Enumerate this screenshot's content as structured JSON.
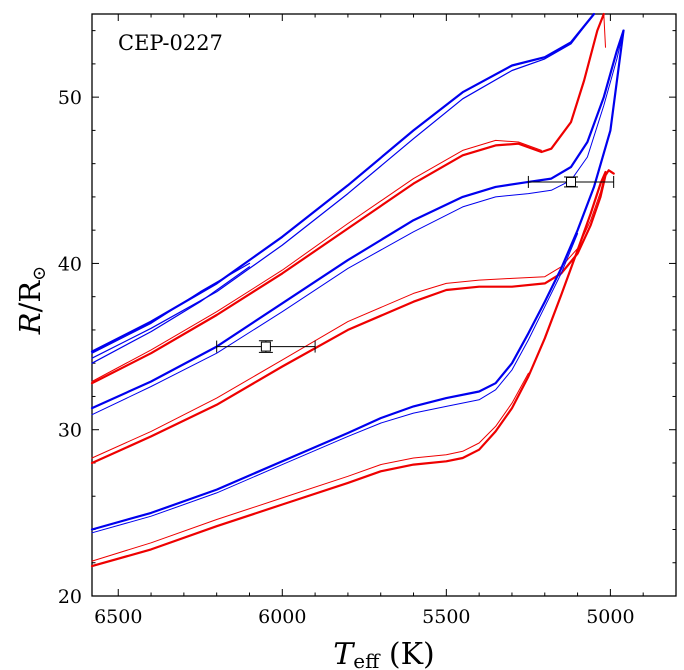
{
  "chart_data": {
    "type": "line",
    "title": "",
    "annotation": "CEP-0227",
    "xlabel_main": "T",
    "xlabel_sub": "eff",
    "xlabel_unit": " (K)",
    "ylabel_main": "R",
    "ylabel_unit": "/R",
    "ylabel_symbol": "⊙",
    "xlim": [
      6580,
      4800
    ],
    "ylim": [
      20,
      55
    ],
    "x_inverted": true,
    "grid": false,
    "xticks": [
      6500,
      6000,
      5500,
      5000
    ],
    "yticks": [
      20,
      30,
      40,
      50
    ],
    "colors": {
      "blue": "#0000ee",
      "red": "#ee0000",
      "black": "#000000"
    },
    "series": [
      {
        "color": "blue",
        "width": 2.2,
        "points": [
          [
            6580,
            34.7
          ],
          [
            6400,
            36.5
          ],
          [
            6200,
            38.8
          ],
          [
            6000,
            41.6
          ],
          [
            5800,
            44.7
          ],
          [
            5600,
            48.0
          ],
          [
            5450,
            50.3
          ],
          [
            5300,
            51.9
          ],
          [
            5200,
            52.4
          ],
          [
            5120,
            53.3
          ],
          [
            5050,
            55.0
          ]
        ]
      },
      {
        "color": "blue",
        "width": 1.2,
        "points": [
          [
            6580,
            34.3
          ],
          [
            6400,
            36.1
          ],
          [
            6200,
            38.3
          ],
          [
            6000,
            41.1
          ],
          [
            5800,
            44.2
          ],
          [
            5600,
            47.5
          ],
          [
            5450,
            49.9
          ],
          [
            5300,
            51.6
          ],
          [
            5200,
            52.3
          ],
          [
            5120,
            53.2
          ],
          [
            5050,
            55.0
          ]
        ]
      },
      {
        "color": "blue",
        "width": 1.2,
        "points": [
          [
            6580,
            34.6
          ],
          [
            6400,
            36.4
          ],
          [
            6250,
            38.3
          ],
          [
            6100,
            40.0
          ]
        ]
      },
      {
        "color": "blue",
        "width": 1.2,
        "points": [
          [
            6580,
            34.0
          ],
          [
            6400,
            35.9
          ],
          [
            6250,
            37.7
          ],
          [
            6100,
            39.8
          ]
        ]
      },
      {
        "color": "red",
        "width": 2.2,
        "points": [
          [
            6580,
            32.8
          ],
          [
            6400,
            34.6
          ],
          [
            6200,
            36.9
          ],
          [
            6000,
            39.4
          ],
          [
            5800,
            42.1
          ],
          [
            5600,
            44.8
          ],
          [
            5450,
            46.5
          ],
          [
            5350,
            47.1
          ],
          [
            5280,
            47.2
          ],
          [
            5210,
            46.7
          ],
          [
            5180,
            46.9
          ],
          [
            5120,
            48.5
          ],
          [
            5080,
            51.0
          ],
          [
            5040,
            54.0
          ],
          [
            5020,
            55.0
          ]
        ]
      },
      {
        "color": "red",
        "width": 1.0,
        "points": [
          [
            6580,
            32.9
          ],
          [
            6400,
            34.8
          ],
          [
            6200,
            37.1
          ],
          [
            6000,
            39.6
          ],
          [
            5800,
            42.4
          ],
          [
            5600,
            45.1
          ],
          [
            5450,
            46.8
          ],
          [
            5350,
            47.4
          ],
          [
            5280,
            47.3
          ],
          [
            5210,
            46.8
          ]
        ]
      },
      {
        "color": "red",
        "width": 1.0,
        "points": [
          [
            5020,
            55.0
          ],
          [
            5015,
            53.0
          ]
        ]
      },
      {
        "color": "blue",
        "width": 2.2,
        "points": [
          [
            6580,
            31.3
          ],
          [
            6400,
            32.9
          ],
          [
            6200,
            35.0
          ],
          [
            6000,
            37.6
          ],
          [
            5800,
            40.2
          ],
          [
            5600,
            42.6
          ],
          [
            5450,
            44.0
          ],
          [
            5350,
            44.6
          ],
          [
            5250,
            44.9
          ],
          [
            5180,
            45.1
          ],
          [
            5120,
            45.8
          ],
          [
            5070,
            47.3
          ],
          [
            5020,
            50.0
          ],
          [
            4980,
            52.8
          ],
          [
            4960,
            54.0
          ]
        ]
      },
      {
        "color": "blue",
        "width": 1.0,
        "points": [
          [
            6580,
            30.9
          ],
          [
            6400,
            32.6
          ],
          [
            6200,
            34.6
          ],
          [
            6000,
            37.1
          ],
          [
            5800,
            39.7
          ],
          [
            5600,
            41.9
          ],
          [
            5450,
            43.4
          ],
          [
            5350,
            44.0
          ],
          [
            5250,
            44.2
          ],
          [
            5180,
            44.4
          ],
          [
            5120,
            45.0
          ],
          [
            5070,
            46.4
          ],
          [
            5020,
            49.5
          ],
          [
            4980,
            52.3
          ],
          [
            4960,
            54.0
          ]
        ]
      },
      {
        "color": "red",
        "width": 2.2,
        "points": [
          [
            6580,
            28.0
          ],
          [
            6400,
            29.6
          ],
          [
            6200,
            31.5
          ],
          [
            6000,
            33.8
          ],
          [
            5800,
            36.0
          ],
          [
            5600,
            37.7
          ],
          [
            5500,
            38.4
          ],
          [
            5400,
            38.6
          ],
          [
            5300,
            38.6
          ],
          [
            5200,
            38.8
          ],
          [
            5150,
            39.4
          ],
          [
            5100,
            40.6
          ],
          [
            5060,
            42.3
          ],
          [
            5030,
            44.0
          ],
          [
            5015,
            45.3
          ],
          [
            5005,
            45.6
          ],
          [
            4990,
            45.4
          ]
        ]
      },
      {
        "color": "red",
        "width": 1.0,
        "points": [
          [
            6580,
            28.3
          ],
          [
            6400,
            29.9
          ],
          [
            6200,
            31.9
          ],
          [
            6000,
            34.2
          ],
          [
            5800,
            36.5
          ],
          [
            5600,
            38.2
          ],
          [
            5500,
            38.8
          ],
          [
            5400,
            39.0
          ],
          [
            5300,
            39.1
          ],
          [
            5200,
            39.2
          ],
          [
            5150,
            39.8
          ],
          [
            5100,
            40.9
          ],
          [
            5060,
            42.6
          ],
          [
            5030,
            44.3
          ],
          [
            5015,
            45.5
          ]
        ]
      },
      {
        "color": "blue",
        "width": 2.2,
        "points": [
          [
            6580,
            24.0
          ],
          [
            6400,
            25.0
          ],
          [
            6200,
            26.4
          ],
          [
            6000,
            28.1
          ],
          [
            5800,
            29.8
          ],
          [
            5700,
            30.7
          ],
          [
            5600,
            31.4
          ],
          [
            5500,
            31.9
          ],
          [
            5400,
            32.3
          ],
          [
            5350,
            32.8
          ],
          [
            5300,
            34.0
          ],
          [
            5250,
            35.8
          ],
          [
            5200,
            37.7
          ],
          [
            5150,
            39.7
          ],
          [
            5100,
            42.0
          ],
          [
            5050,
            44.6
          ],
          [
            5000,
            48.0
          ],
          [
            4960,
            54.0
          ]
        ]
      },
      {
        "color": "blue",
        "width": 1.0,
        "points": [
          [
            6580,
            23.8
          ],
          [
            6400,
            24.8
          ],
          [
            6200,
            26.2
          ],
          [
            6000,
            27.9
          ],
          [
            5800,
            29.6
          ],
          [
            5700,
            30.4
          ],
          [
            5600,
            31.0
          ],
          [
            5500,
            31.4
          ],
          [
            5400,
            31.8
          ],
          [
            5350,
            32.4
          ],
          [
            5300,
            33.6
          ],
          [
            5250,
            35.4
          ],
          [
            5200,
            37.4
          ],
          [
            5150,
            39.4
          ],
          [
            5100,
            41.8
          ]
        ]
      },
      {
        "color": "red",
        "width": 2.2,
        "points": [
          [
            6580,
            21.8
          ],
          [
            6400,
            22.8
          ],
          [
            6200,
            24.2
          ],
          [
            6000,
            25.5
          ],
          [
            5800,
            26.8
          ],
          [
            5700,
            27.5
          ],
          [
            5600,
            27.9
          ],
          [
            5500,
            28.1
          ],
          [
            5450,
            28.3
          ],
          [
            5400,
            28.8
          ],
          [
            5350,
            29.9
          ],
          [
            5300,
            31.3
          ],
          [
            5250,
            33.2
          ],
          [
            5200,
            35.5
          ],
          [
            5150,
            38.1
          ],
          [
            5100,
            40.8
          ],
          [
            5060,
            43.0
          ],
          [
            5030,
            44.8
          ],
          [
            5015,
            45.5
          ]
        ]
      },
      {
        "color": "red",
        "width": 1.0,
        "points": [
          [
            6580,
            22.1
          ],
          [
            6400,
            23.2
          ],
          [
            6200,
            24.6
          ],
          [
            6000,
            25.9
          ],
          [
            5800,
            27.2
          ],
          [
            5700,
            27.9
          ],
          [
            5600,
            28.3
          ],
          [
            5500,
            28.5
          ],
          [
            5450,
            28.7
          ],
          [
            5400,
            29.2
          ],
          [
            5350,
            30.2
          ],
          [
            5300,
            31.6
          ],
          [
            5250,
            33.4
          ]
        ]
      }
    ],
    "points": [
      {
        "x": 6050,
        "y": 35.0,
        "xerr": 150,
        "yerr": 0.35
      },
      {
        "x": 5120,
        "y": 44.9,
        "xerr": 130,
        "yerr": 0.3
      }
    ]
  }
}
